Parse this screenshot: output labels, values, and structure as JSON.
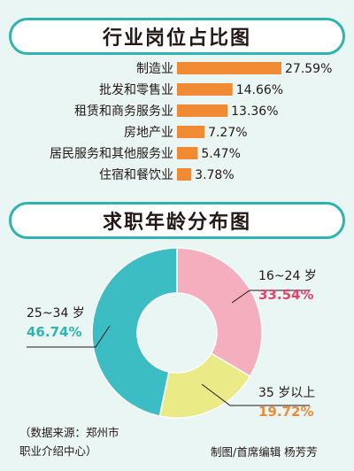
{
  "colors": {
    "background": "#e9f6f4",
    "accent": "#2fb4b0",
    "bar": "#f08a33",
    "slice_16_24": "#f4aebe",
    "slice_35plus": "#eaeb87",
    "slice_25_34": "#3cbcc3",
    "pct_16_24": "#e2436b",
    "pct_35plus": "#f08a33",
    "pct_25_34": "#2fb4b0"
  },
  "chart_data": [
    {
      "type": "bar",
      "orientation": "horizontal",
      "title": "行业岗位占比图",
      "categories": [
        "制造业",
        "批发和零售业",
        "租赁和商务服务业",
        "房地产业",
        "居民服务和其他服务业",
        "住宿和餐饮业"
      ],
      "values": [
        27.59,
        14.66,
        13.36,
        7.27,
        5.47,
        3.78
      ],
      "value_labels": [
        "27.59%",
        "14.66%",
        "13.36%",
        "7.27%",
        "5.47%",
        "3.78%"
      ],
      "unit": "%"
    },
    {
      "type": "pie",
      "style": "donut",
      "title": "求职年龄分布图",
      "categories": [
        "16~24 岁",
        "35 岁以上",
        "25~34 岁"
      ],
      "values": [
        33.54,
        19.72,
        46.74
      ],
      "value_labels": [
        "33.54%",
        "19.72%",
        "46.74%"
      ],
      "unit": "%"
    }
  ],
  "footer": {
    "source_line1": "（数据来源：郑州市",
    "source_line2": "职业介绍中心）",
    "credit": "制图/首席编辑  杨芳芳"
  }
}
